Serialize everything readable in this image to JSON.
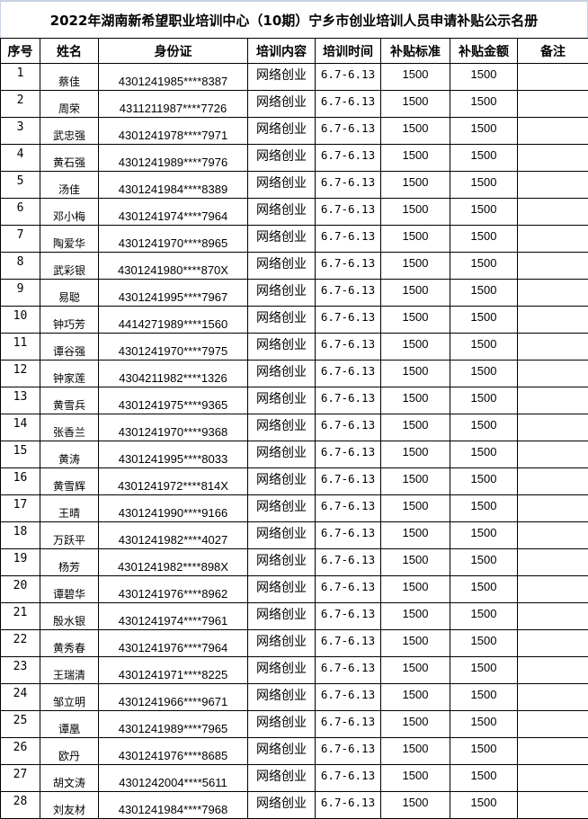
{
  "title": "2022年湖南新希望职业培训中心（10期）宁乡市创业培训人员申请补贴公示名册",
  "headers": [
    "序号",
    "姓名",
    "身份证",
    "培训内容",
    "培训时间",
    "补贴标准",
    "补贴金额",
    "备注"
  ],
  "rows": [
    {
      "seq": "1",
      "name": "蔡佳",
      "id": "4301241985****8387",
      "content": "网络创业",
      "time": "6.7-6.13",
      "standard": "1500",
      "amount": "1500",
      "note": ""
    },
    {
      "seq": "2",
      "name": "周荣",
      "id": "4311211987****7726",
      "content": "网络创业",
      "time": "6.7-6.13",
      "standard": "1500",
      "amount": "1500",
      "note": ""
    },
    {
      "seq": "3",
      "name": "武忠强",
      "id": "4301241978****7971",
      "content": "网络创业",
      "time": "6.7-6.13",
      "standard": "1500",
      "amount": "1500",
      "note": ""
    },
    {
      "seq": "4",
      "name": "黄石强",
      "id": "4301241989****7976",
      "content": "网络创业",
      "time": "6.7-6.13",
      "standard": "1500",
      "amount": "1500",
      "note": ""
    },
    {
      "seq": "5",
      "name": "汤佳",
      "id": "4301241984****8389",
      "content": "网络创业",
      "time": "6.7-6.13",
      "standard": "1500",
      "amount": "1500",
      "note": ""
    },
    {
      "seq": "6",
      "name": "邓小梅",
      "id": "4301241974****7964",
      "content": "网络创业",
      "time": "6.7-6.13",
      "standard": "1500",
      "amount": "1500",
      "note": ""
    },
    {
      "seq": "7",
      "name": "陶爱华",
      "id": "4301241970****8965",
      "content": "网络创业",
      "time": "6.7-6.13",
      "standard": "1500",
      "amount": "1500",
      "note": ""
    },
    {
      "seq": "8",
      "name": "武彩银",
      "id": "4301241980****870X",
      "content": "网络创业",
      "time": "6.7-6.13",
      "standard": "1500",
      "amount": "1500",
      "note": ""
    },
    {
      "seq": "9",
      "name": "易聪",
      "id": "4301241995****7967",
      "content": "网络创业",
      "time": "6.7-6.13",
      "standard": "1500",
      "amount": "1500",
      "note": ""
    },
    {
      "seq": "10",
      "name": "钟巧芳",
      "id": "4414271989****1560",
      "content": "网络创业",
      "time": "6.7-6.13",
      "standard": "1500",
      "amount": "1500",
      "note": ""
    },
    {
      "seq": "11",
      "name": "谭谷强",
      "id": "4301241970****7975",
      "content": "网络创业",
      "time": "6.7-6.13",
      "standard": "1500",
      "amount": "1500",
      "note": ""
    },
    {
      "seq": "12",
      "name": "钟家莲",
      "id": "4304211982****1326",
      "content": "网络创业",
      "time": "6.7-6.13",
      "standard": "1500",
      "amount": "1500",
      "note": ""
    },
    {
      "seq": "13",
      "name": "黄雪兵",
      "id": "4301241975****9365",
      "content": "网络创业",
      "time": "6.7-6.13",
      "standard": "1500",
      "amount": "1500",
      "note": ""
    },
    {
      "seq": "14",
      "name": "张香兰",
      "id": "4301241970****9368",
      "content": "网络创业",
      "time": "6.7-6.13",
      "standard": "1500",
      "amount": "1500",
      "note": ""
    },
    {
      "seq": "15",
      "name": "黄涛",
      "id": "4301241995****8033",
      "content": "网络创业",
      "time": "6.7-6.13",
      "standard": "1500",
      "amount": "1500",
      "note": ""
    },
    {
      "seq": "16",
      "name": "黄雪辉",
      "id": "4301241972****814X",
      "content": "网络创业",
      "time": "6.7-6.13",
      "standard": "1500",
      "amount": "1500",
      "note": ""
    },
    {
      "seq": "17",
      "name": "王晴",
      "id": "4301241990****9166",
      "content": "网络创业",
      "time": "6.7-6.13",
      "standard": "1500",
      "amount": "1500",
      "note": ""
    },
    {
      "seq": "18",
      "name": "万跃平",
      "id": "4301241982****4027",
      "content": "网络创业",
      "time": "6.7-6.13",
      "standard": "1500",
      "amount": "1500",
      "note": ""
    },
    {
      "seq": "19",
      "name": "杨芳",
      "id": "4301241982****898X",
      "content": "网络创业",
      "time": "6.7-6.13",
      "standard": "1500",
      "amount": "1500",
      "note": ""
    },
    {
      "seq": "20",
      "name": "谭碧华",
      "id": "4301241976****8962",
      "content": "网络创业",
      "time": "6.7-6.13",
      "standard": "1500",
      "amount": "1500",
      "note": ""
    },
    {
      "seq": "21",
      "name": "殷水银",
      "id": "4301241974****7961",
      "content": "网络创业",
      "time": "6.7-6.13",
      "standard": "1500",
      "amount": "1500",
      "note": ""
    },
    {
      "seq": "22",
      "name": "黄秀春",
      "id": "4301241976****7964",
      "content": "网络创业",
      "time": "6.7-6.13",
      "standard": "1500",
      "amount": "1500",
      "note": ""
    },
    {
      "seq": "23",
      "name": "王瑞清",
      "id": "4301241971****8225",
      "content": "网络创业",
      "time": "6.7-6.13",
      "standard": "1500",
      "amount": "1500",
      "note": ""
    },
    {
      "seq": "24",
      "name": "邹立明",
      "id": "4301241966****9671",
      "content": "网络创业",
      "time": "6.7-6.13",
      "standard": "1500",
      "amount": "1500",
      "note": ""
    },
    {
      "seq": "25",
      "name": "谭凰",
      "id": "4301241989****7965",
      "content": "网络创业",
      "time": "6.7-6.13",
      "standard": "1500",
      "amount": "1500",
      "note": ""
    },
    {
      "seq": "26",
      "name": "欧丹",
      "id": "4301241976****8685",
      "content": "网络创业",
      "time": "6.7-6.13",
      "standard": "1500",
      "amount": "1500",
      "note": ""
    },
    {
      "seq": "27",
      "name": "胡文涛",
      "id": "4301242004****5611",
      "content": "网络创业",
      "time": "6.7-6.13",
      "standard": "1500",
      "amount": "1500",
      "note": ""
    },
    {
      "seq": "28",
      "name": "刘友材",
      "id": "4301241984****7968",
      "content": "网络创业",
      "time": "6.7-6.13",
      "standard": "1500",
      "amount": "1500",
      "note": ""
    }
  ]
}
